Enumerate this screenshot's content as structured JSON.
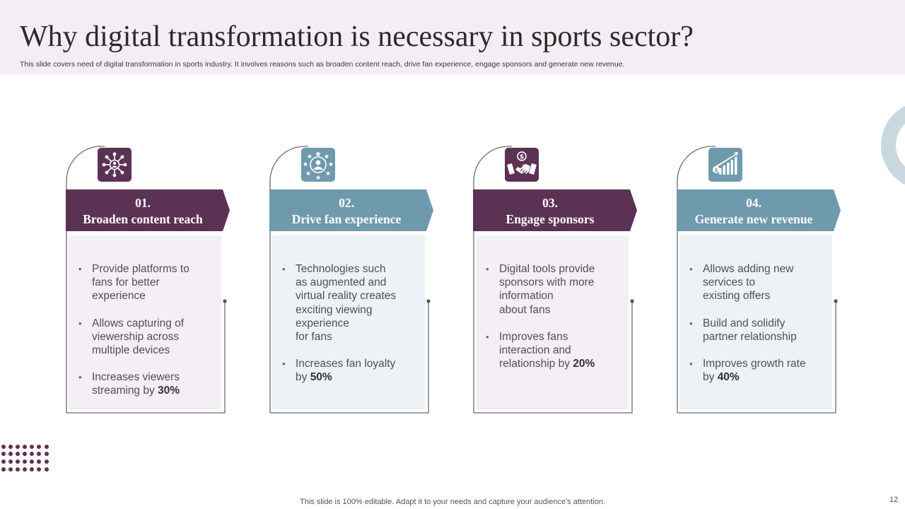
{
  "header": {
    "title": "Why digital transformation is necessary in sports sector?",
    "subtitle": "This slide covers need of digital transformation in sports industry. It involves reasons such as broaden content reach, drive fan experience, engage sponsors and generate new revenue."
  },
  "cards": [
    {
      "number": "01.",
      "title": "Broaden content reach",
      "icon": "network-people-icon",
      "bullets": [
        {
          "text": "Provide platforms to\nfans for better\nexperience"
        },
        {
          "text": "Allows capturing of\nviewership across\nmultiple devices"
        },
        {
          "text": "Increases viewers\nstreaming by ",
          "bold": "30%"
        }
      ]
    },
    {
      "number": "02.",
      "title": "Drive fan experience",
      "icon": "customer-stars-icon",
      "bullets": [
        {
          "text": "Technologies such\nas augmented and\nvirtual reality creates\nexciting viewing\nexperience\nfor fans"
        },
        {
          "text": "Increases fan loyalty\nby ",
          "bold": "50%"
        }
      ]
    },
    {
      "number": "03.",
      "title": "Engage sponsors",
      "icon": "handshake-dollar-icon",
      "bullets": [
        {
          "text": "Digital tools provide\nsponsors with more\ninformation\nabout fans"
        },
        {
          "text": "Improves fans\ninteraction  and\nrelationship by ",
          "bold": "20%"
        }
      ]
    },
    {
      "number": "04.",
      "title": "Generate new revenue",
      "icon": "growth-chart-icon",
      "bullets": [
        {
          "text": "Allows adding new\nservices to\nexisting offers"
        },
        {
          "text": "Build and solidify\npartner relationship"
        },
        {
          "text": "Improves growth rate\nby ",
          "bold": "40%"
        }
      ]
    }
  ],
  "footer": {
    "note": "This slide is 100% editable. Adapt it to your needs and capture your audience's attention.",
    "page_number": "12"
  },
  "colors": {
    "purple": "#5c3254",
    "blue": "#6f9aad",
    "panel_purple": "#f4eff4",
    "panel_blue": "#edf2f6"
  }
}
